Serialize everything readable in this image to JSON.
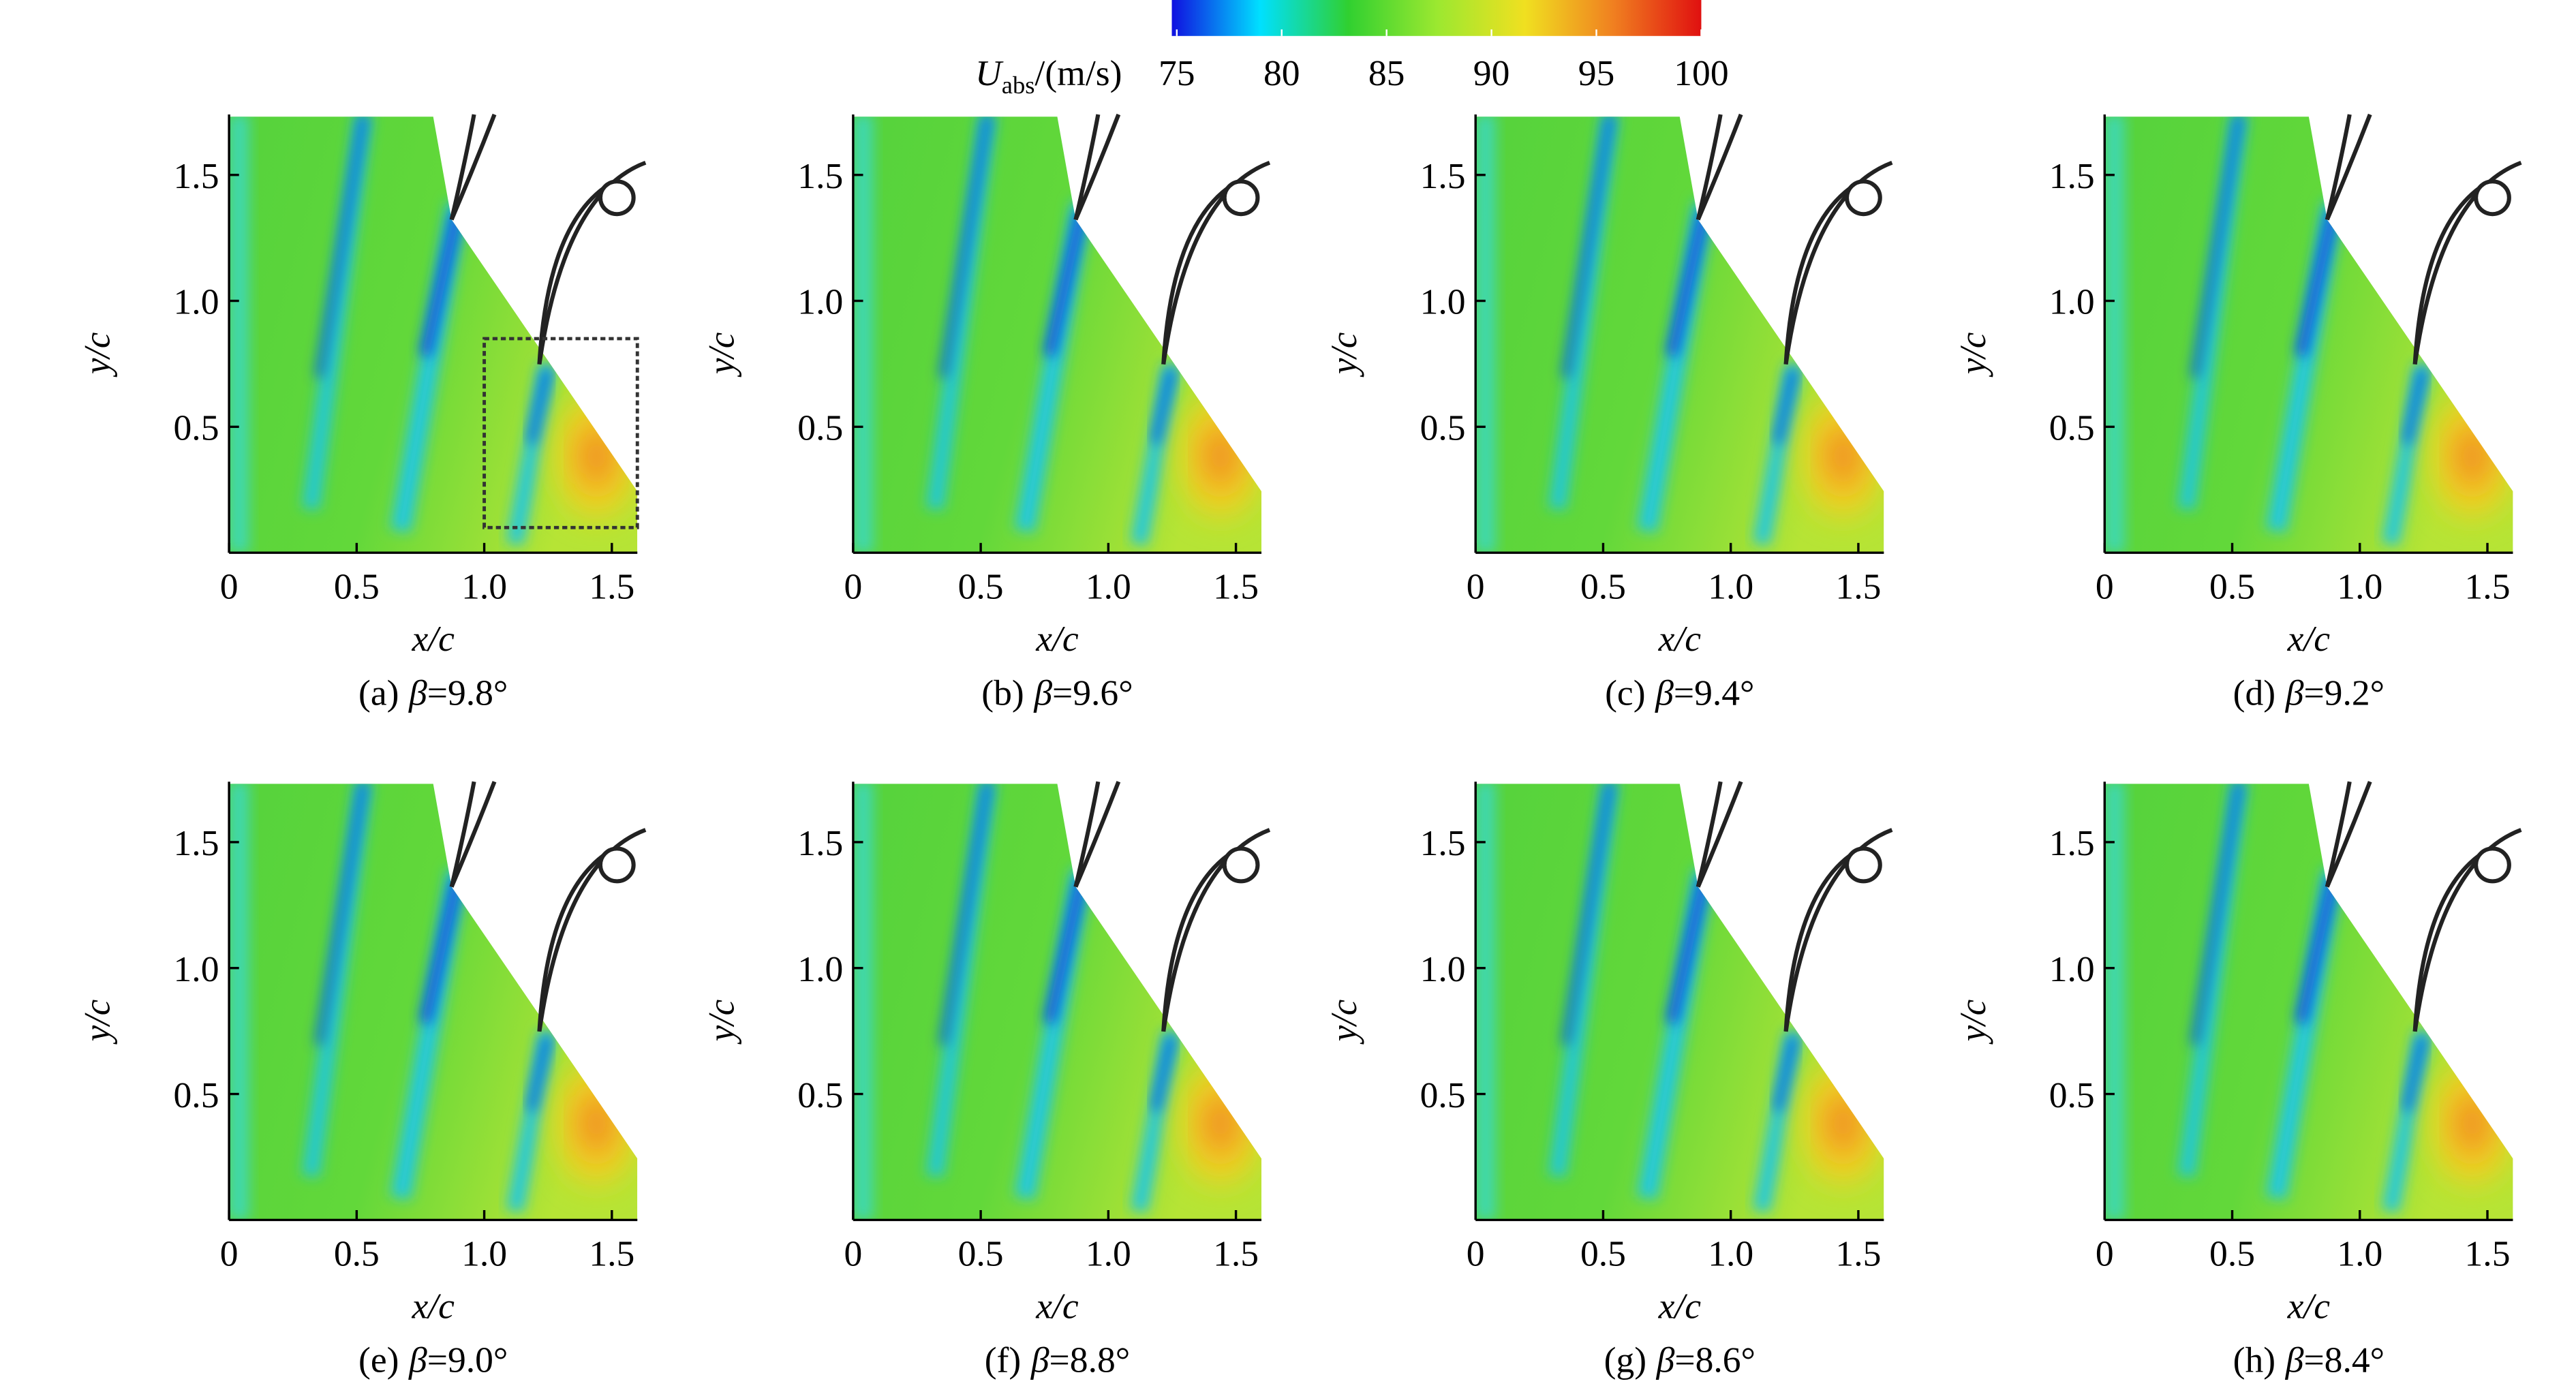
{
  "colorbar": {
    "label_symbol": "U",
    "label_sub": "abs",
    "label_unit": "/(m/s)",
    "lim": [
      75,
      100
    ],
    "ticks": [
      75,
      80,
      85,
      90,
      95,
      100
    ],
    "colors": [
      "#1010e0",
      "#00e0ff",
      "#30d030",
      "#9be830",
      "#f0e020",
      "#f08020",
      "#e01010"
    ]
  },
  "chart_data": [
    {
      "type": "field",
      "caption_tag": "(a)",
      "caption_symbol": "β",
      "caption_value": "=9.8°",
      "xlabel": "x/c",
      "ylabel": "y/c",
      "xlim": [
        0,
        1.6
      ],
      "ylim": [
        0,
        1.74
      ],
      "xticks": [
        0,
        0.5,
        {
          "value": 1,
          "label": "1.0"
        },
        1.5
      ],
      "yticks": [
        0.5,
        {
          "value": 1,
          "label": "1.0"
        },
        1.5
      ],
      "highlight_box": true
    },
    {
      "type": "field",
      "caption_tag": "(b)",
      "caption_symbol": "β",
      "caption_value": "=9.6°",
      "xlabel": "x/c",
      "ylabel": "y/c",
      "xlim": [
        0,
        1.6
      ],
      "ylim": [
        0,
        1.74
      ],
      "xticks": [
        0,
        0.5,
        {
          "value": 1,
          "label": "1.0"
        },
        1.5
      ],
      "yticks": [
        0.5,
        {
          "value": 1,
          "label": "1.0"
        },
        1.5
      ]
    },
    {
      "type": "field",
      "caption_tag": "(c)",
      "caption_symbol": "β",
      "caption_value": "=9.4°",
      "xlabel": "x/c",
      "ylabel": "y/c",
      "xlim": [
        0,
        1.6
      ],
      "ylim": [
        0,
        1.74
      ],
      "xticks": [
        0,
        0.5,
        {
          "value": 1,
          "label": "1.0"
        },
        1.5
      ],
      "yticks": [
        0.5,
        {
          "value": 1,
          "label": "1.0"
        },
        1.5
      ]
    },
    {
      "type": "field",
      "caption_tag": "(d)",
      "caption_symbol": "β",
      "caption_value": "=9.2°",
      "xlabel": "x/c",
      "ylabel": "y/c",
      "xlim": [
        0,
        1.6
      ],
      "ylim": [
        0,
        1.74
      ],
      "xticks": [
        0,
        0.5,
        {
          "value": 1,
          "label": "1.0"
        },
        1.5
      ],
      "yticks": [
        0.5,
        {
          "value": 1,
          "label": "1.0"
        },
        1.5
      ]
    },
    {
      "type": "field",
      "caption_tag": "(e)",
      "caption_symbol": "β",
      "caption_value": "=9.0°",
      "xlabel": "x/c",
      "ylabel": "y/c",
      "xlim": [
        0,
        1.6
      ],
      "ylim": [
        0,
        1.74
      ],
      "xticks": [
        0,
        0.5,
        {
          "value": 1,
          "label": "1.0"
        },
        1.5
      ],
      "yticks": [
        0.5,
        {
          "value": 1,
          "label": "1.0"
        },
        1.5
      ]
    },
    {
      "type": "field",
      "caption_tag": "(f)",
      "caption_symbol": "β",
      "caption_value": "=8.8°",
      "xlabel": "x/c",
      "ylabel": "y/c",
      "xlim": [
        0,
        1.6
      ],
      "ylim": [
        0,
        1.74
      ],
      "xticks": [
        0,
        0.5,
        {
          "value": 1,
          "label": "1.0"
        },
        1.5
      ],
      "yticks": [
        0.5,
        {
          "value": 1,
          "label": "1.0"
        },
        1.5
      ]
    },
    {
      "type": "field",
      "caption_tag": "(g)",
      "caption_symbol": "β",
      "caption_value": "=8.6°",
      "xlabel": "x/c",
      "ylabel": "y/c",
      "xlim": [
        0,
        1.6
      ],
      "ylim": [
        0,
        1.74
      ],
      "xticks": [
        0,
        0.5,
        {
          "value": 1,
          "label": "1.0"
        },
        1.5
      ],
      "yticks": [
        0.5,
        {
          "value": 1,
          "label": "1.0"
        },
        1.5
      ]
    },
    {
      "type": "field",
      "caption_tag": "(h)",
      "caption_symbol": "β",
      "caption_value": "=8.4°",
      "xlabel": "x/c",
      "ylabel": "y/c",
      "xlim": [
        0,
        1.6
      ],
      "ylim": [
        0,
        1.74
      ],
      "xticks": [
        0,
        0.5,
        {
          "value": 1,
          "label": "1.0"
        },
        1.5
      ],
      "yticks": [
        0.5,
        {
          "value": 1,
          "label": "1.0"
        },
        1.5
      ]
    }
  ]
}
